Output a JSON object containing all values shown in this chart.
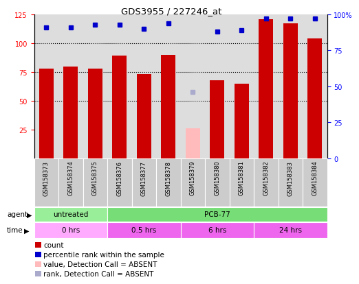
{
  "title": "GDS3955 / 227246_at",
  "samples": [
    "GSM158373",
    "GSM158374",
    "GSM158375",
    "GSM158376",
    "GSM158377",
    "GSM158378",
    "GSM158379",
    "GSM158380",
    "GSM158381",
    "GSM158382",
    "GSM158383",
    "GSM158384"
  ],
  "bar_heights": [
    78,
    80,
    78,
    89,
    73,
    90,
    26,
    68,
    65,
    121,
    117,
    104
  ],
  "bar_absent": [
    false,
    false,
    false,
    false,
    false,
    false,
    true,
    false,
    false,
    false,
    false,
    false
  ],
  "percentile_ranks": [
    91,
    91,
    93,
    93,
    90,
    94,
    null,
    88,
    89,
    97,
    97,
    97
  ],
  "absent_rank": [
    null,
    null,
    null,
    null,
    null,
    null,
    46,
    null,
    null,
    null,
    null,
    null
  ],
  "bar_color": "#cc0000",
  "bar_absent_color": "#ffbbbb",
  "percentile_color": "#0000cc",
  "absent_rank_color": "#aaaacc",
  "ylim_left": [
    0,
    125
  ],
  "ylim_right": [
    0,
    100
  ],
  "yticks_left": [
    25,
    50,
    75,
    100,
    125
  ],
  "ytick_labels_left": [
    "25",
    "50",
    "75",
    "100",
    "125"
  ],
  "yticks_right": [
    0,
    25,
    50,
    75,
    100
  ],
  "ytick_labels_right": [
    "0",
    "25",
    "50",
    "75",
    "100%"
  ],
  "agent_groups": [
    {
      "label": "untreated",
      "start": 0,
      "end": 3,
      "color": "#99ee99"
    },
    {
      "label": "PCB-77",
      "start": 3,
      "end": 12,
      "color": "#77dd77"
    }
  ],
  "time_groups": [
    {
      "label": "0 hrs",
      "start": 0,
      "end": 3,
      "color": "#ffaaff"
    },
    {
      "label": "0.5 hrs",
      "start": 3,
      "end": 6,
      "color": "#ee66ee"
    },
    {
      "label": "6 hrs",
      "start": 6,
      "end": 9,
      "color": "#ee66ee"
    },
    {
      "label": "24 hrs",
      "start": 9,
      "end": 12,
      "color": "#ee66ee"
    }
  ],
  "legend_items": [
    {
      "label": "count",
      "color": "#cc0000"
    },
    {
      "label": "percentile rank within the sample",
      "color": "#0000cc"
    },
    {
      "label": "value, Detection Call = ABSENT",
      "color": "#ffbbbb"
    },
    {
      "label": "rank, Detection Call = ABSENT",
      "color": "#aaaacc"
    }
  ],
  "background_color": "#ffffff",
  "plot_bg_color": "#dddddd",
  "grid_dotted_at": [
    50,
    75,
    100
  ]
}
